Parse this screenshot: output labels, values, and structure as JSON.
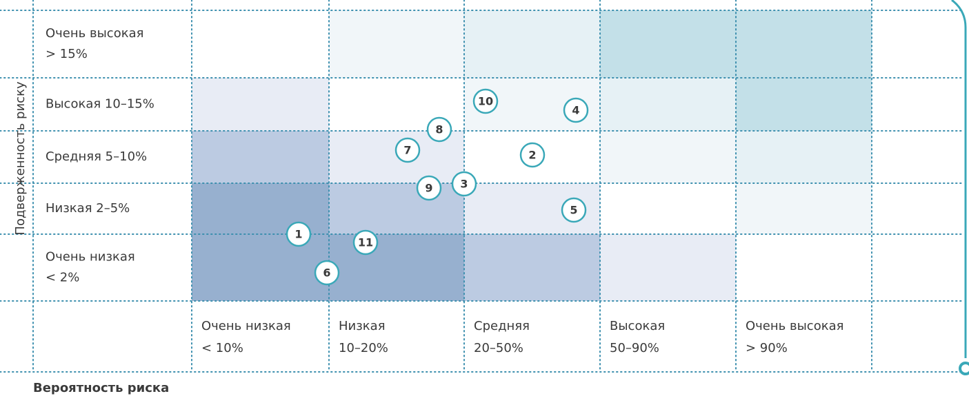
{
  "y_axis_label": "Подверженность риску",
  "x_axis_label": "Вероятность риска",
  "rows": [
    [
      "Очень высокая",
      "> 15%"
    ],
    [
      "Высокая 10–15%"
    ],
    [
      "Средняя 5–10%"
    ],
    [
      "Низкая 2–5%"
    ],
    [
      "Очень низкая",
      "< 2%"
    ]
  ],
  "columns": [
    [
      "Очень низкая",
      "< 10%"
    ],
    [
      "Низкая",
      "10–20%"
    ],
    [
      "Средняя",
      "20–50%"
    ],
    [
      "Высокая",
      "50–90%"
    ],
    [
      "Очень высокая",
      "> 90%"
    ]
  ],
  "cell_colors": [
    [
      "#ffffff",
      "#f1f6f9",
      "#e6f1f5",
      "#c3e0e8",
      "#c3e0e8"
    ],
    [
      "#e8ecf5",
      "#ffffff",
      "#f1f6f9",
      "#e6f1f5",
      "#c3e0e8"
    ],
    [
      "#bccbe2",
      "#e8ecf5",
      "#ffffff",
      "#f1f6f9",
      "#e6f1f5"
    ],
    [
      "#97b0cf",
      "#bccbe2",
      "#e8ecf5",
      "#ffffff",
      "#f1f6f9"
    ],
    [
      "#97b0cf",
      "#97b0cf",
      "#bccbe2",
      "#e8ecf5",
      "#ffffff"
    ]
  ],
  "markers": [
    1,
    2,
    3,
    4,
    5,
    6,
    7,
    8,
    9,
    10,
    11
  ]
}
